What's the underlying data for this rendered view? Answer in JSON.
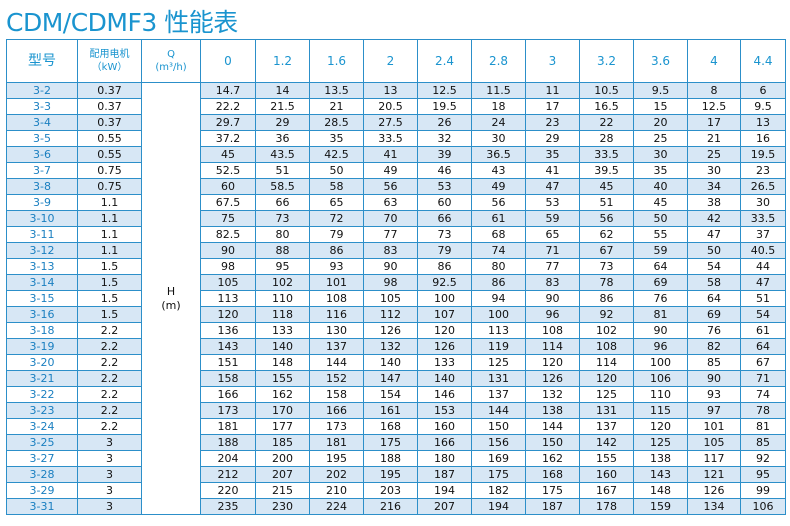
{
  "title": "CDM/CDMF3 性能表",
  "header": {
    "model": "型号",
    "power_line1": "配用电机",
    "power_line2": "（kW）",
    "q_line1": "Q",
    "q_line2": "(m³/h)",
    "flows": [
      "0",
      "1.2",
      "1.6",
      "2",
      "2.4",
      "2.8",
      "3",
      "3.2",
      "3.6",
      "4",
      "4.4"
    ]
  },
  "head_label_line1": "H",
  "head_label_line2": "(m)",
  "rows": [
    {
      "model": "3-2",
      "power": "0.37",
      "h": [
        "14.7",
        "14",
        "13.5",
        "13",
        "12.5",
        "11.5",
        "11",
        "10.5",
        "9.5",
        "8",
        "6"
      ]
    },
    {
      "model": "3-3",
      "power": "0.37",
      "h": [
        "22.2",
        "21.5",
        "21",
        "20.5",
        "19.5",
        "18",
        "17",
        "16.5",
        "15",
        "12.5",
        "9.5"
      ]
    },
    {
      "model": "3-4",
      "power": "0.37",
      "h": [
        "29.7",
        "29",
        "28.5",
        "27.5",
        "26",
        "24",
        "23",
        "22",
        "20",
        "17",
        "13"
      ]
    },
    {
      "model": "3-5",
      "power": "0.55",
      "h": [
        "37.2",
        "36",
        "35",
        "33.5",
        "32",
        "30",
        "29",
        "28",
        "25",
        "21",
        "16"
      ]
    },
    {
      "model": "3-6",
      "power": "0.55",
      "h": [
        "45",
        "43.5",
        "42.5",
        "41",
        "39",
        "36.5",
        "35",
        "33.5",
        "30",
        "25",
        "19.5"
      ]
    },
    {
      "model": "3-7",
      "power": "0.75",
      "h": [
        "52.5",
        "51",
        "50",
        "49",
        "46",
        "43",
        "41",
        "39.5",
        "35",
        "30",
        "23"
      ]
    },
    {
      "model": "3-8",
      "power": "0.75",
      "h": [
        "60",
        "58.5",
        "58",
        "56",
        "53",
        "49",
        "47",
        "45",
        "40",
        "34",
        "26.5"
      ]
    },
    {
      "model": "3-9",
      "power": "1.1",
      "h": [
        "67.5",
        "66",
        "65",
        "63",
        "60",
        "56",
        "53",
        "51",
        "45",
        "38",
        "30"
      ]
    },
    {
      "model": "3-10",
      "power": "1.1",
      "h": [
        "75",
        "73",
        "72",
        "70",
        "66",
        "61",
        "59",
        "56",
        "50",
        "42",
        "33.5"
      ]
    },
    {
      "model": "3-11",
      "power": "1.1",
      "h": [
        "82.5",
        "80",
        "79",
        "77",
        "73",
        "68",
        "65",
        "62",
        "55",
        "47",
        "37"
      ]
    },
    {
      "model": "3-12",
      "power": "1.1",
      "h": [
        "90",
        "88",
        "86",
        "83",
        "79",
        "74",
        "71",
        "67",
        "59",
        "50",
        "40.5"
      ]
    },
    {
      "model": "3-13",
      "power": "1.5",
      "h": [
        "98",
        "95",
        "93",
        "90",
        "86",
        "80",
        "77",
        "73",
        "64",
        "54",
        "44"
      ]
    },
    {
      "model": "3-14",
      "power": "1.5",
      "h": [
        "105",
        "102",
        "101",
        "98",
        "92.5",
        "86",
        "83",
        "78",
        "69",
        "58",
        "47"
      ]
    },
    {
      "model": "3-15",
      "power": "1.5",
      "h": [
        "113",
        "110",
        "108",
        "105",
        "100",
        "94",
        "90",
        "86",
        "76",
        "64",
        "51"
      ]
    },
    {
      "model": "3-16",
      "power": "1.5",
      "h": [
        "120",
        "118",
        "116",
        "112",
        "107",
        "100",
        "96",
        "92",
        "81",
        "69",
        "54"
      ]
    },
    {
      "model": "3-18",
      "power": "2.2",
      "h": [
        "136",
        "133",
        "130",
        "126",
        "120",
        "113",
        "108",
        "102",
        "90",
        "76",
        "61"
      ]
    },
    {
      "model": "3-19",
      "power": "2.2",
      "h": [
        "143",
        "140",
        "137",
        "132",
        "126",
        "119",
        "114",
        "108",
        "96",
        "82",
        "64"
      ]
    },
    {
      "model": "3-20",
      "power": "2.2",
      "h": [
        "151",
        "148",
        "144",
        "140",
        "133",
        "125",
        "120",
        "114",
        "100",
        "85",
        "67"
      ]
    },
    {
      "model": "3-21",
      "power": "2.2",
      "h": [
        "158",
        "155",
        "152",
        "147",
        "140",
        "131",
        "126",
        "120",
        "106",
        "90",
        "71"
      ]
    },
    {
      "model": "3-22",
      "power": "2.2",
      "h": [
        "166",
        "162",
        "158",
        "154",
        "146",
        "137",
        "132",
        "125",
        "110",
        "93",
        "74"
      ]
    },
    {
      "model": "3-23",
      "power": "2.2",
      "h": [
        "173",
        "170",
        "166",
        "161",
        "153",
        "144",
        "138",
        "131",
        "115",
        "97",
        "78"
      ]
    },
    {
      "model": "3-24",
      "power": "2.2",
      "h": [
        "181",
        "177",
        "173",
        "168",
        "160",
        "150",
        "144",
        "137",
        "120",
        "101",
        "81"
      ]
    },
    {
      "model": "3-25",
      "power": "3",
      "h": [
        "188",
        "185",
        "181",
        "175",
        "166",
        "156",
        "150",
        "142",
        "125",
        "105",
        "85"
      ]
    },
    {
      "model": "3-27",
      "power": "3",
      "h": [
        "204",
        "200",
        "195",
        "188",
        "180",
        "169",
        "162",
        "155",
        "138",
        "117",
        "92"
      ]
    },
    {
      "model": "3-28",
      "power": "3",
      "h": [
        "212",
        "207",
        "202",
        "195",
        "187",
        "175",
        "168",
        "160",
        "143",
        "121",
        "95"
      ]
    },
    {
      "model": "3-29",
      "power": "3",
      "h": [
        "220",
        "215",
        "210",
        "203",
        "194",
        "182",
        "175",
        "167",
        "148",
        "126",
        "99"
      ]
    },
    {
      "model": "3-31",
      "power": "3",
      "h": [
        "235",
        "230",
        "224",
        "216",
        "207",
        "194",
        "187",
        "178",
        "159",
        "134",
        "106"
      ]
    }
  ]
}
